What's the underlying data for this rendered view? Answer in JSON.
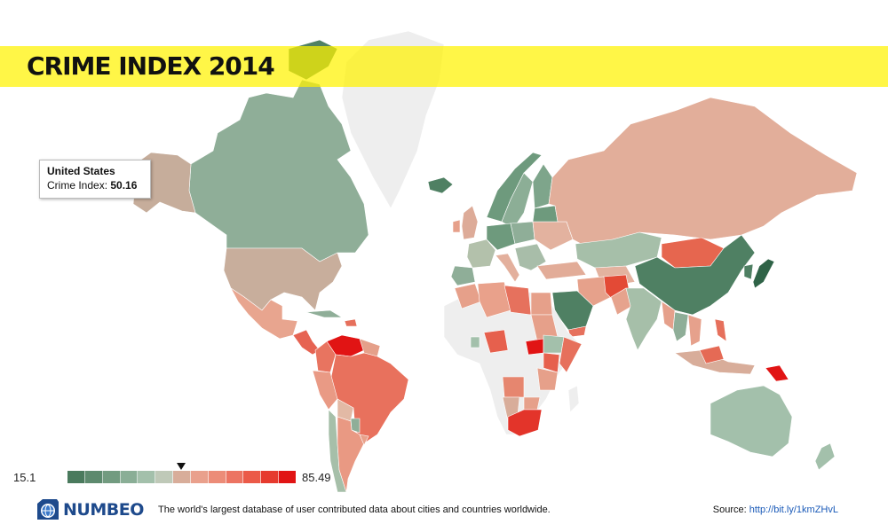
{
  "title": "CRIME INDEX 2014",
  "tooltip": {
    "country": "United States",
    "label": "Crime Index:",
    "value": "50.16"
  },
  "legend": {
    "min": "15.1",
    "max": "85.49",
    "marker_value": 50.16,
    "colors": [
      "#4a7a5d",
      "#5d8a6e",
      "#729b80",
      "#8aae96",
      "#a3c0ab",
      "#bfc9b8",
      "#d8ad9a",
      "#e9a08c",
      "#ec8c78",
      "#ec7462",
      "#eb5a48",
      "#e63a2e",
      "#e11414"
    ]
  },
  "map": {
    "no_data_color": "#eeeeee",
    "border_color": "#ffffff"
  },
  "footer": {
    "brand": "NUMBEO",
    "tagline": "The world's largest database of user contributed data about cities and countries worldwide.",
    "source_label": "Source:",
    "source_link": "http://bit.ly/1kmZHvL"
  },
  "colors": {
    "title_band": "#fff200",
    "brand_blue": "#1e4a8c",
    "link_blue": "#1a5ab8"
  }
}
